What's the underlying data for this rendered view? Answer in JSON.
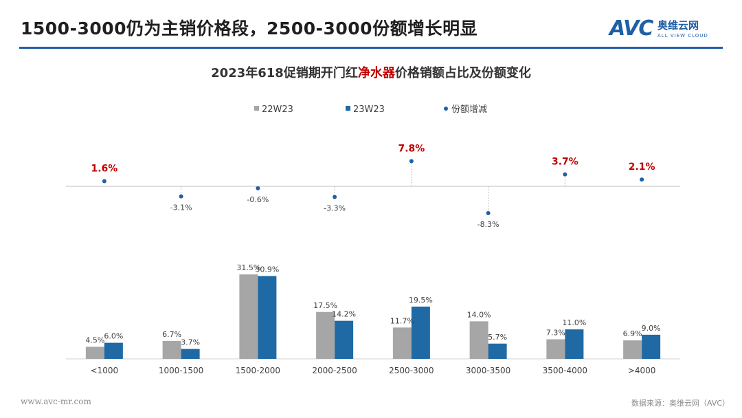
{
  "header": {
    "title": "1500-3000仍为主销价格段，2500-3000份额增长明显",
    "logo_avc": "AVC",
    "logo_cn": "奥维云网",
    "logo_en": "ALL VIEW CLOUD"
  },
  "chart_title": {
    "prefix": "2023年618促销期开门红",
    "highlight": "净水器",
    "suffix": "价格销额占比及份额变化"
  },
  "footer": {
    "website": "www.avc-mr.com",
    "source": "数据来源：奥维云网（AVC）"
  },
  "colors": {
    "series_22": "#a6a6a6",
    "series_23": "#1f6aa5",
    "dot": "#1f5fa8",
    "positive_label": "#c00000",
    "negative_label": "#404040",
    "title_rule": "#1f5fa8"
  },
  "chart_data": {
    "type": "bar",
    "categories": [
      "<1000",
      "1000-1500",
      "1500-2000",
      "2000-2500",
      "2500-3000",
      "3000-3500",
      "3500-4000",
      ">4000"
    ],
    "series": [
      {
        "name": "22W23",
        "values": [
          4.5,
          6.7,
          31.5,
          17.5,
          11.7,
          14.0,
          7.3,
          6.9
        ],
        "labels": [
          "4.5%",
          "6.7%",
          "31.5%",
          "17.5%",
          "11.7%",
          "14.0%",
          "7.3%",
          "6.9%"
        ]
      },
      {
        "name": "23W23",
        "values": [
          6.0,
          3.7,
          30.9,
          14.2,
          19.5,
          5.7,
          11.0,
          9.0
        ],
        "labels": [
          "6.0%",
          "3.7%",
          "30.9%",
          "14.2%",
          "19.5%",
          "5.7%",
          "11.0%",
          "9.0%"
        ]
      }
    ],
    "share_change": {
      "name": "份额增减",
      "values": [
        1.6,
        -3.1,
        -0.6,
        -3.3,
        7.8,
        -8.3,
        3.7,
        2.1
      ],
      "labels": [
        "1.6%",
        "-3.1%",
        "-0.6%",
        "-3.3%",
        "7.8%",
        "-8.3%",
        "3.7%",
        "2.1%"
      ]
    },
    "legend": {
      "position": "top"
    }
  }
}
